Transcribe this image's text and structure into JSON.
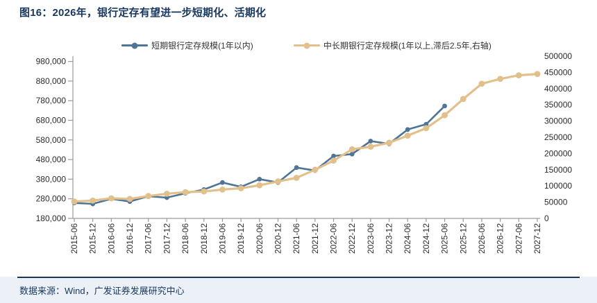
{
  "header": {
    "title": "图16：2026年，银行定存有望进一步短期化、活期化"
  },
  "footer": {
    "source": "数据来源：Wind，广发证券发展研究中心"
  },
  "colors": {
    "short_term": "#4E7496",
    "medium_long": "#E2C08C",
    "navy": "#17375E",
    "axis_line": "#9A9A9A",
    "tick_text": "#2B2B2B",
    "footer_bg": "#ECF1F8"
  },
  "chart_data": {
    "type": "line",
    "title": "图16：2026年，银行定存有望进一步短期化、活期化",
    "legend_position": "top",
    "grid": false,
    "categories": [
      "2015-06",
      "2015-12",
      "2016-06",
      "2016-12",
      "2017-06",
      "2017-12",
      "2018-06",
      "2018-12",
      "2019-06",
      "2019-12",
      "2020-06",
      "2020-12",
      "2021-06",
      "2021-12",
      "2022-06",
      "2022-12",
      "2023-06",
      "2023-12",
      "2024-06",
      "2024-12",
      "2025-06",
      "2025-12",
      "2026-06",
      "2026-12",
      "2027-06",
      "2027-12"
    ],
    "series": [
      {
        "name": "短期银行定存规模(1年以内)",
        "axis": "left",
        "color_key": "short_term",
        "marker": "circle",
        "values": [
          259000,
          254000,
          280000,
          266000,
          293000,
          286000,
          308000,
          327000,
          363000,
          341000,
          380000,
          363000,
          439000,
          424000,
          498000,
          508000,
          574000,
          560000,
          633000,
          660000,
          753000,
          null,
          null,
          null,
          null,
          null
        ]
      },
      {
        "name": "中长期银行定存规模(1年以上,滞后2.5年,右轴)",
        "axis": "right",
        "color_key": "medium_long",
        "marker": "circle",
        "values": [
          52000,
          55000,
          62000,
          60000,
          69000,
          76000,
          81000,
          83000,
          89000,
          93000,
          102000,
          114000,
          125000,
          150000,
          178000,
          213000,
          221000,
          233000,
          255000,
          278000,
          318000,
          368000,
          415000,
          430000,
          441000,
          445000
        ]
      }
    ],
    "left_axis": {
      "min": 180000,
      "max": 980000,
      "tick_labels": [
        "980,000",
        "880,000",
        "780,000",
        "680,000",
        "580,000",
        "480,000",
        "380,000",
        "280,000",
        "180,000"
      ]
    },
    "right_axis": {
      "min": 0,
      "max": 500000,
      "tick_labels": [
        "500000",
        "450000",
        "400000",
        "350000",
        "300000",
        "250000",
        "200000",
        "150000",
        "100000",
        "50000",
        "0"
      ]
    }
  }
}
